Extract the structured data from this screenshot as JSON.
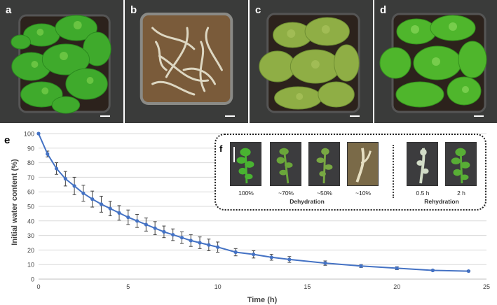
{
  "photos": [
    {
      "id": "a",
      "label": "a",
      "state": "hydrated",
      "plant_color": "#3faa2c"
    },
    {
      "id": "b",
      "label": "b",
      "state": "dried",
      "plant_color": "#ddd7c2"
    },
    {
      "id": "c",
      "label": "c",
      "state": "partially-rehydrated",
      "plant_color": "#8fae45"
    },
    {
      "id": "d",
      "label": "d",
      "state": "rehydrated",
      "plant_color": "#4fb62c"
    }
  ],
  "chart_data": {
    "type": "line",
    "panel_label": "e",
    "xlabel": "Time (h)",
    "ylabel": "Initial water content (%)",
    "xlim": [
      0,
      25
    ],
    "ylim": [
      0,
      100
    ],
    "xticks": [
      0,
      5,
      10,
      15,
      20,
      25
    ],
    "yticks": [
      0,
      10,
      20,
      30,
      40,
      50,
      60,
      70,
      80,
      90,
      100
    ],
    "grid": "horizontal",
    "series_color": "#4472c4",
    "x": [
      0,
      0.5,
      1,
      1.5,
      2,
      2.5,
      3,
      3.5,
      4,
      4.5,
      5,
      5.5,
      6,
      6.5,
      7,
      7.5,
      8,
      8.5,
      9,
      9.5,
      10,
      11,
      12,
      13,
      14,
      16,
      18,
      20,
      22,
      24
    ],
    "y": [
      100,
      86,
      76,
      69,
      64,
      59,
      55,
      51.5,
      48.5,
      45.5,
      42.5,
      40,
      37.5,
      35,
      32.5,
      30.5,
      28.5,
      26.5,
      25,
      23.5,
      22,
      18.5,
      17,
      15,
      13.5,
      11,
      9,
      7.5,
      6,
      5.5
    ],
    "yerr": [
      0,
      2,
      4,
      5,
      6,
      5.5,
      5.5,
      5.5,
      5,
      5,
      5,
      4.5,
      4.5,
      4.5,
      4,
      4,
      4,
      4,
      4,
      4,
      3.5,
      2.5,
      2.5,
      2,
      2,
      1.5,
      1,
      1,
      0.5,
      0.5
    ]
  },
  "inset": {
    "label": "f",
    "dehydration_label": "Dehydration",
    "rehydration_label": "Rehydration",
    "thumbs": [
      {
        "label": "100%",
        "color": "#49b331"
      },
      {
        "label": "~70%",
        "color": "#6aa63a"
      },
      {
        "label": "~50%",
        "color": "#78a843"
      },
      {
        "label": "~10%",
        "color": "#e6dfc2"
      },
      {
        "label": "0.5 h",
        "color": "#d2dcc8"
      },
      {
        "label": "2 h",
        "color": "#58ae35"
      }
    ]
  }
}
